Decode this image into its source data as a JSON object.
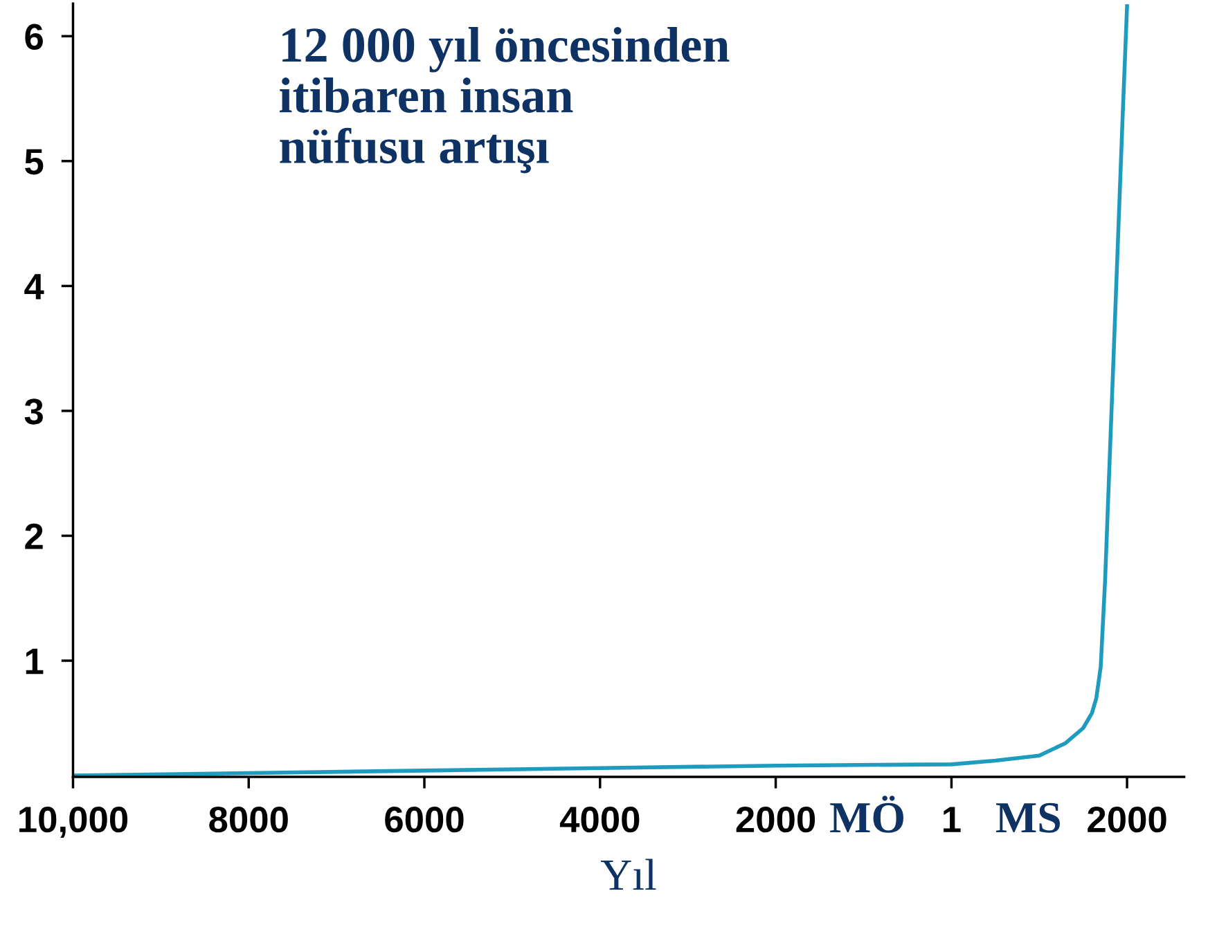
{
  "chart_data": {
    "type": "line",
    "title": "12 000 yıl öncesinden\nitibaren insan\nnüfusu artışı",
    "xlabel": "Yıl",
    "annotations": [
      "MÖ",
      "MS"
    ],
    "x": [
      -10000,
      -8000,
      -6000,
      -4000,
      -2000,
      0,
      500,
      1000,
      1300,
      1500,
      1600,
      1650,
      1700,
      1750,
      1800,
      1850,
      1900,
      1950,
      2000
    ],
    "series": [
      {
        "color": "#1e9bbf",
        "values": [
          0.08,
          0.1,
          0.12,
          0.14,
          0.16,
          0.17,
          0.2,
          0.24,
          0.34,
          0.46,
          0.58,
          0.7,
          0.95,
          1.64,
          2.57,
          3.5,
          4.43,
          5.36,
          6.24
        ]
      }
    ],
    "xlim": [
      -10000,
      2650
    ],
    "ylim": [
      0.07,
      6.26
    ],
    "xticks": [
      {
        "value": -10000,
        "label": "10,000"
      },
      {
        "value": -8000,
        "label": "8000"
      },
      {
        "value": -6000,
        "label": "6000"
      },
      {
        "value": -4000,
        "label": "4000"
      },
      {
        "value": -2000,
        "label": "2000"
      },
      {
        "value": 1,
        "label": "1"
      },
      {
        "value": 2000,
        "label": "2000"
      }
    ],
    "yticks": [
      1,
      2,
      3,
      4,
      5,
      6
    ],
    "grid": false,
    "legend": false,
    "marker": "none",
    "line_style": "solid"
  }
}
